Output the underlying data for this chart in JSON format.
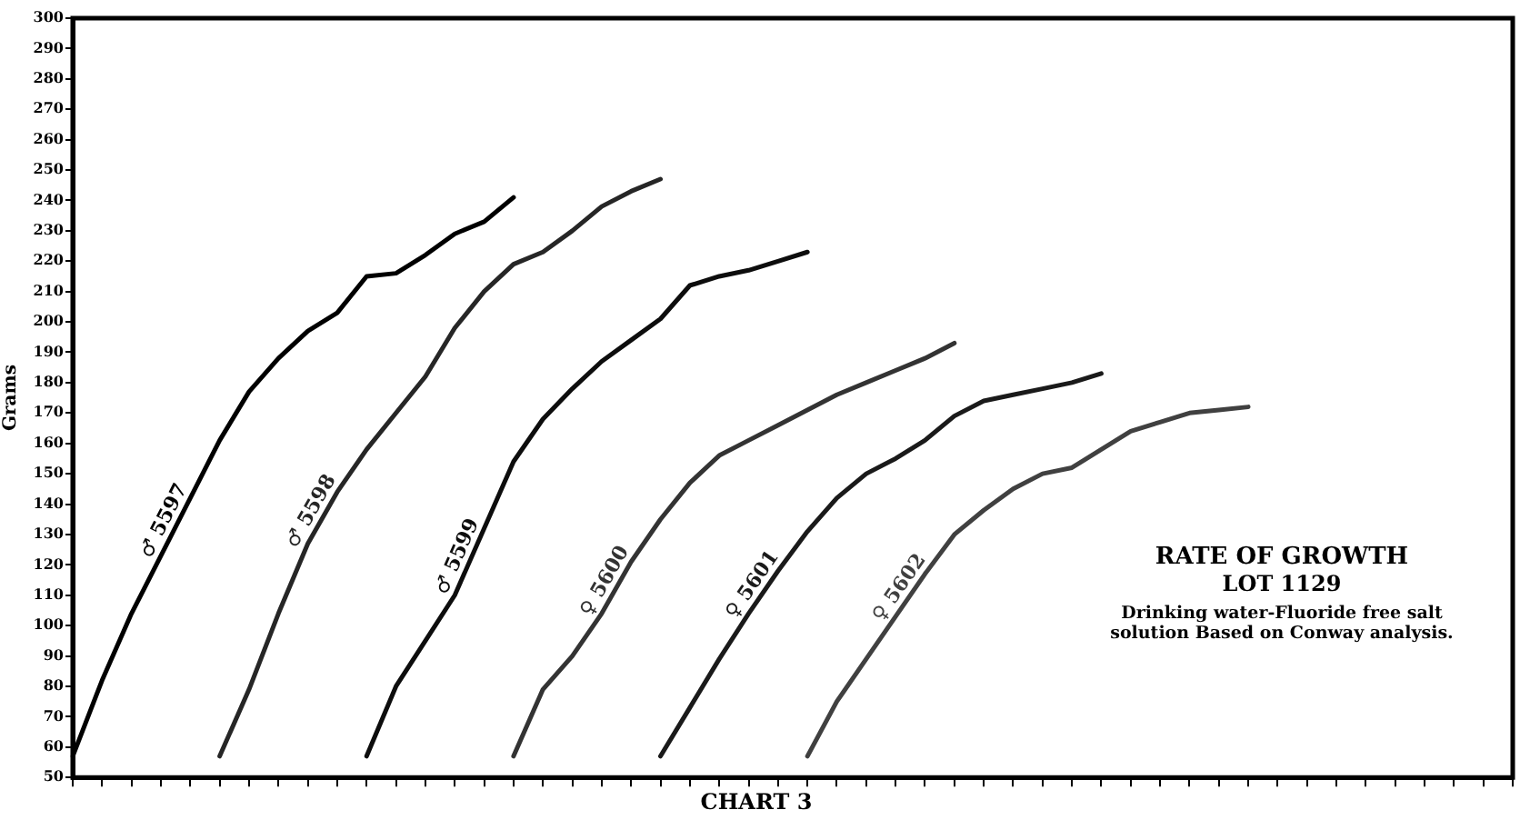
{
  "chart_data": {
    "type": "line",
    "title": "CHART 3",
    "ylabel": "Grams",
    "categories": [
      null,
      null,
      null,
      null,
      null,
      null,
      null,
      null,
      null,
      null,
      null,
      null,
      null,
      null,
      null,
      null,
      null,
      null,
      null,
      null,
      null,
      null,
      null,
      null,
      null,
      null,
      null,
      null,
      null,
      null,
      null,
      null,
      null,
      null,
      null,
      null,
      null,
      null,
      null,
      null,
      null,
      null,
      null,
      null,
      null,
      null,
      null,
      null,
      null,
      null
    ],
    "series": [
      {
        "name": "♂ 5597",
        "color": "#000000",
        "values": [
          57,
          82,
          104,
          123,
          142,
          161,
          177,
          188,
          197,
          203,
          215,
          216,
          222,
          229,
          233,
          241,
          null,
          null,
          null,
          null,
          null,
          null,
          null,
          null,
          null,
          null,
          null,
          null,
          null,
          null,
          null,
          null,
          null,
          null,
          null,
          null,
          null,
          null,
          null,
          null,
          null,
          null,
          null,
          null,
          null,
          null,
          null,
          null,
          null,
          null
        ]
      },
      {
        "name": "♂ 5598",
        "color": "#262626",
        "values": [
          null,
          null,
          null,
          null,
          null,
          57,
          79,
          104,
          127,
          144,
          158,
          170,
          182,
          198,
          210,
          219,
          223,
          230,
          238,
          243,
          247,
          null,
          null,
          null,
          null,
          null,
          null,
          null,
          null,
          null,
          null,
          null,
          null,
          null,
          null,
          null,
          null,
          null,
          null,
          null,
          null,
          null,
          null,
          null,
          null,
          null,
          null,
          null,
          null,
          null
        ]
      },
      {
        "name": "♂ 5599",
        "color": "#0d0d0d",
        "values": [
          null,
          null,
          null,
          null,
          null,
          null,
          null,
          null,
          null,
          null,
          57,
          80,
          95,
          110,
          132,
          154,
          168,
          178,
          187,
          194,
          201,
          212,
          215,
          217,
          220,
          223,
          null,
          null,
          null,
          null,
          null,
          null,
          null,
          null,
          null,
          null,
          null,
          null,
          null,
          null,
          null,
          null,
          null,
          null,
          null,
          null,
          null,
          null,
          null,
          null
        ]
      },
      {
        "name": "♀ 5600",
        "color": "#333333",
        "values": [
          null,
          null,
          null,
          null,
          null,
          null,
          null,
          null,
          null,
          null,
          null,
          null,
          null,
          null,
          null,
          57,
          79,
          90,
          104,
          121,
          135,
          147,
          156,
          161,
          166,
          171,
          176,
          180,
          184,
          188,
          193,
          null,
          null,
          null,
          null,
          null,
          null,
          null,
          null,
          null,
          null,
          null,
          null,
          null,
          null,
          null,
          null,
          null,
          null,
          null
        ]
      },
      {
        "name": "♀ 5601",
        "color": "#1a1a1a",
        "values": [
          null,
          null,
          null,
          null,
          null,
          null,
          null,
          null,
          null,
          null,
          null,
          null,
          null,
          null,
          null,
          null,
          null,
          null,
          null,
          null,
          57,
          73,
          89,
          104,
          118,
          131,
          142,
          150,
          155,
          161,
          169,
          174,
          176,
          178,
          180,
          183,
          null,
          null,
          null,
          null,
          null,
          null,
          null,
          null,
          null,
          null,
          null,
          null,
          null,
          null
        ]
      },
      {
        "name": "♀ 5602",
        "color": "#404040",
        "values": [
          null,
          null,
          null,
          null,
          null,
          null,
          null,
          null,
          null,
          null,
          null,
          null,
          null,
          null,
          null,
          null,
          null,
          null,
          null,
          null,
          null,
          null,
          null,
          null,
          null,
          57,
          75,
          89,
          103,
          117,
          130,
          138,
          145,
          150,
          152,
          158,
          164,
          167,
          170,
          171,
          172,
          null,
          null,
          null,
          null,
          null,
          null,
          null,
          null,
          null
        ]
      }
    ],
    "ylim": [
      50,
      300
    ],
    "yticks": [
      50,
      60,
      70,
      80,
      90,
      100,
      110,
      120,
      130,
      140,
      150,
      160,
      170,
      180,
      190,
      200,
      210,
      220,
      230,
      240,
      250,
      260,
      270,
      280,
      290,
      300
    ],
    "tick_labels": "y",
    "grid": false,
    "legend": false,
    "marker": "none",
    "line_style": "solid",
    "annotations": [
      "RATE OF GROWTH",
      "LOT 1129",
      "Drinking water-Fluoride free salt solution Based on Conway analysis."
    ]
  }
}
